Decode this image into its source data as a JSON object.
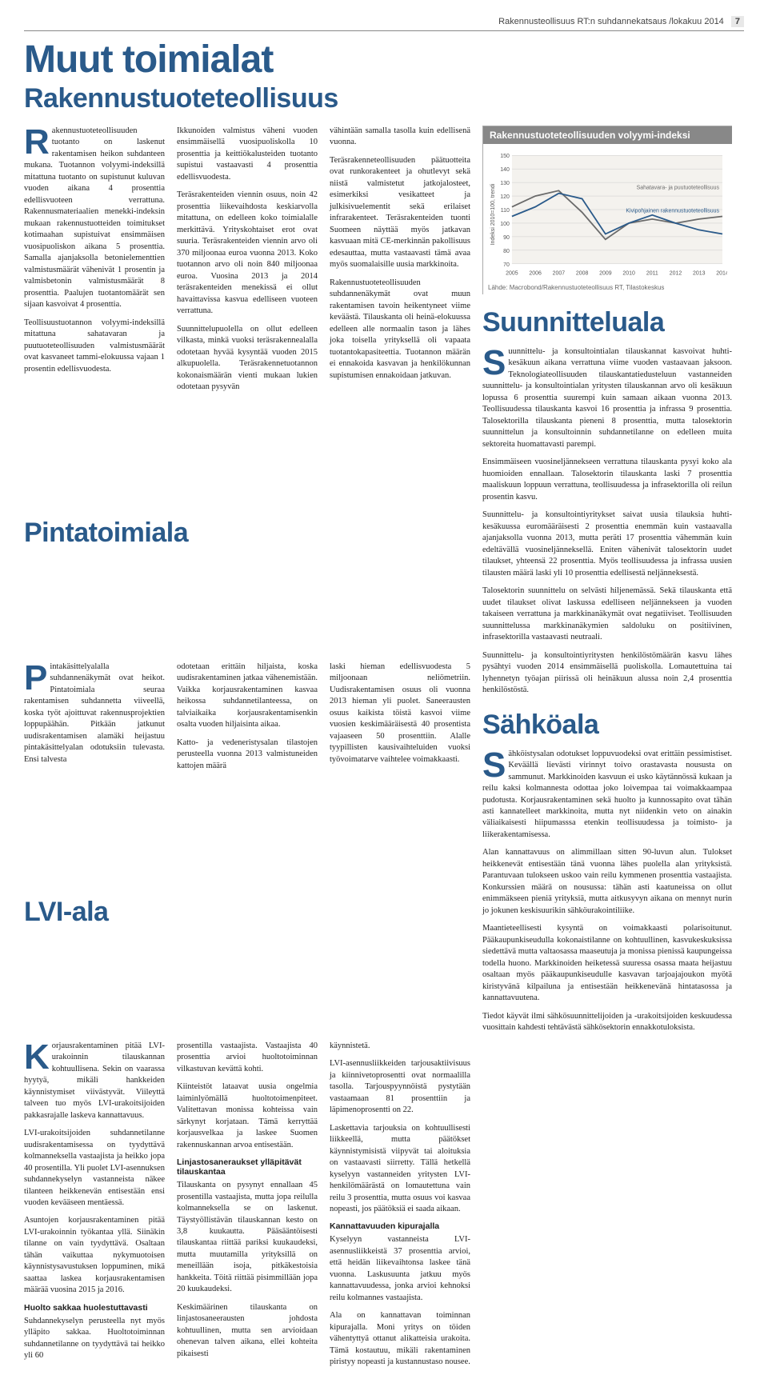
{
  "topbar": {
    "text": "Rakennusteollisuus RT:n suhdannekatsaus /lokakuu 2014",
    "page": "7"
  },
  "titles": {
    "main": "Muut toimialat",
    "sub1": "Rakennustuoteteollisuus",
    "sub2": "Pintatoimiala",
    "sub3": "LVI-ala",
    "right1": "Suunnitteluala",
    "right2": "Sähköala"
  },
  "chart": {
    "title": "Rakennustuoteteollisuuden volyymi-indeksi",
    "ylabel": "Indeksi 2010=100, trendi",
    "legend1": "Sahatavara- ja puutuoteteollisuus",
    "legend2": "Kivipohjainen rakennustuoteteollisuus",
    "ylim": [
      70,
      150
    ],
    "yticks": [
      70,
      80,
      90,
      100,
      110,
      120,
      130,
      140,
      150
    ],
    "xticks": [
      "2005",
      "2006",
      "2007",
      "2008",
      "2009",
      "2010",
      "2011",
      "2012",
      "2013",
      "2014"
    ],
    "series_colors": {
      "s1": "#6a6a6a",
      "s2": "#2a5a8a"
    },
    "grid_color": "#cccccc",
    "bg_color": "#f4f2ee",
    "s1_values": [
      112,
      120,
      124,
      108,
      88,
      100,
      103,
      100,
      103,
      105
    ],
    "s2_values": [
      105,
      112,
      122,
      118,
      92,
      100,
      106,
      100,
      95,
      92
    ],
    "source": "Lähde: Macrobond/Rakennustuoteteollisuus RT, Tilastokeskus"
  },
  "rtt": {
    "c1p1": "Rakennustuoteteollisuuden tuotanto on laskenut rakentamisen heikon suhdanteen mukana. Tuotannon volyymi-indeksillä mitattuna tuotanto on supistunut kuluvan vuoden aikana 4 prosenttia edellisvuoteen verrattuna. Rakennusmateriaalien menekki-indeksin mukaan rakennustuotteiden toimitukset kotimaahan supistuivat ensimmäisen vuosipuoliskon aikana 5 prosenttia. Samalla ajanjaksolla betonielementtien valmistusmäärät vähenivät 1 prosentin ja valmisbetonin valmistusmäärät 8 prosenttia. Paalujen tuotantomäärät sen sijaan kasvoivat 4 prosenttia.",
    "c1p2": "Teollisuustuotannon volyymi-indeksillä mitattuna sahatavaran ja puutuoteteollisuuden valmistusmäärät ovat kasvaneet tammi-elokuussa vajaan 1 prosentin edellisvuodesta.",
    "c2p1": "Ikkunoiden valmistus väheni vuoden ensimmäisellä vuosipuoliskolla 10 prosenttia ja keittiökalusteiden tuotanto supistui vastaavasti 4 prosenttia edellisvuodesta.",
    "c2p2": "Teräsrakenteiden viennin osuus, noin 42 prosenttia liikevaihdosta keskiarvolla mitattuna, on edelleen koko toimialalle merkittävä. Yrityskohtaiset erot ovat suuria. Teräsrakenteiden viennin arvo oli 370 miljoonaa euroa vuonna 2013. Koko tuotannon arvo oli noin 840 miljoonaa euroa. Vuosina 2013 ja 2014 teräsrakenteiden menekissä ei ollut havaittavissa kasvua edelliseen vuoteen verrattuna.",
    "c2p3": "Suunnittelupuolella on ollut edelleen vilkasta, minkä vuoksi teräsrakennealalla odotetaan hyvää kysyntää vuoden 2015 alkupuolella. Teräsrakennetuotannon kokonaismäärän vienti mukaan lukien odotetaan pysyvän",
    "c3p1": "vähintään samalla tasolla kuin edellisenä vuonna.",
    "c3p2": "Teräsrakenneteollisuuden päätuotteita ovat runkorakenteet ja ohutlevyt sekä niistä valmistetut jatkojalosteet, esimerkiksi vesikatteet ja julkisivuelementit sekä erilaiset infrarakenteet. Teräsrakenteiden tuonti Suomeen näyttää myös jatkavan kasvuaan mitä CE-merkinnän pakollisuus edesauttaa, mutta vastaavasti tämä avaa myös suomalaisille uusia markkinoita.",
    "c3p3": "Rakennustuoteteollisuuden suhdannenäkymät ovat muun rakentamisen tavoin heikentyneet viime keväästä. Tilauskanta oli heinä-elokuussa edelleen alle normaalin tason ja lähes joka toisella yrityksellä oli vapaata tuotantokapasiteettia. Tuotannon määrän ei ennakoida kasvavan ja henkilökunnan supistumisen ennakoidaan jatkuvan."
  },
  "pinta": {
    "c1p1": "Pintakäsittelyalalla suhdannenäkymät ovat heikot. Pintatoimiala seuraa rakentamisen suhdannetta viiveellä, koska työt ajoittuvat rakennusprojektien loppupäähän. Pitkään jatkunut uudisrakentamisen alamäki heijastuu pintakäsittelyalan odotuksiin tulevasta. Ensi talvesta",
    "c2p1": "odotetaan erittäin hiljaista, koska uudisrakentaminen jatkaa vähenemistään. Vaikka korjausrakentaminen kasvaa heikossa suhdannetilanteessa, on talviaikaika korjausrakentamisenkin osalta vuoden hiljaisinta aikaa.",
    "c2p2": "Katto- ja vedeneristysalan tilastojen perusteella vuonna 2013 valmistuneiden kattojen määrä",
    "c3p1": "laski hieman edellisvuodesta 5 miljoonaan neliömetriin. Uudisrakentamisen osuus oli vuonna 2013 hieman yli puolet. Saneerausten osuus kaikista töistä kasvoi viime vuosien keskimääräisestä 40 prosentista vajaaseen 50 prosenttiin. Alalle tyypillisten kausivaihteluiden vuoksi työvoimatarve vaihtelee voimakkaasti."
  },
  "lvi": {
    "c1p1": "Korjausrakentaminen pitää LVI-urakoinnin tilauskannan kohtuullisena. Sekin on vaarassa hyytyä, mikäli hankkeiden käynnistymiset viivästyvät. Viileyttä talveen tuo myös LVI-urakoitsijoiden pakkasrajalle laskeva kannattavuus.",
    "c1p2": "LVI-urakoitsijoiden suhdannetilanne uudisrakentamisessa on tyydyttävä kolmanneksella vastaajista ja heikko jopa 40 prosentilla. Yli puolet LVI-asennuksen suhdannekyselyn vastanneista näkee tilanteen heikkenevän entisestään ensi vuoden kevääseen mentäessä.",
    "c1p3": "Asuntojen korjausrakentaminen pitää LVI-urakoinnin työkantaa yllä. Siinäkin tilanne on vain tyydyttävä. Osaltaan tähän vaikuttaa nykymuotoisen käynnistysavustuksen loppuminen, mikä saattaa laskea korjausrakentamisen määrää vuosina 2015 ja 2016.",
    "c1h1": "Huolto sakkaa huolestuttavasti",
    "c1p4": "Suhdannekyselyn perusteella nyt myös ylläpito sakkaa. Huoltotoiminnan suhdannetilanne on tyydyttävä tai heikko yli 60",
    "c2p1": "prosentilla vastaajista. Vastaajista 40 prosenttia arvioi huoltotoiminnan vilkastuvan kevättä kohti.",
    "c2p2": "Kiinteistöt lataavat uusia ongelmia laiminlyömällä huoltotoimenpiteet. Valitettavan monissa kohteissa vain särkynyt korjataan. Tämä kerryttää korjausvelkaa ja laskee Suomen rakennuskannan arvoa entisestään.",
    "c2h1": "Linjastosaneraukset ylläpitävät tilauskantaa",
    "c2p3": "Tilauskanta on pysynyt ennallaan 45 prosentilla vastaajista, mutta jopa reilulla kolmanneksella se on laskenut. Täystyöllistävän tilauskannan kesto on 3,8 kuukautta. Pääsääntöisesti tilauskantaa riittää pariksi kuukaudeksi, mutta muutamilla yrityksillä on meneillään isoja, pitkäkestoisia hankkeita. Töitä riittää pisimmillään jopa 20 kuukaudeksi.",
    "c2p4": "Keskimäärinen tilauskanta on linjastosaneerausten johdosta kohtuullinen, mutta sen arvioidaan ohenevan talven aikana, ellei kohteita pikaisesti",
    "c3p1": "käynnistetä.",
    "c3p2": "LVI-asennusliikkeiden tarjousaktiivisuus ja kiinnivetoprosentti ovat normaalilla tasolla. Tarjouspyynnöistä pystytään vastaamaan 81 prosenttiin ja läpimenoprosentti on 22.",
    "c3p3": "Laskettavia tarjouksia on kohtuullisesti liikkeellä, mutta päätökset käynnistymisistä viipyvät tai aloituksia on vastaavasti siirretty. Tällä hetkellä kyselyyn vastanneiden yritysten LVI-henkilömäärästä on lomautettuna vain reilu 3 prosenttia, mutta osuus voi kasvaa nopeasti, jos päätöksiä ei saada aikaan.",
    "c3h1": "Kannattavuuden kipurajalla",
    "c3p4": "Kyselyyn vastanneista LVI-asennusliikkeistä 37 prosenttia arvioi, että heidän liikevaihtonsa laskee tänä vuonna. Laskusuunta jatkuu myös kannattavuudessa, jonka arvioi kehnoksi reilu kolmannes vastaajista.",
    "c3p5": "Ala on kannattavan toiminnan kipurajalla. Moni yritys on töiden vähentyttyä ottanut alikatteisia urakoita. Tämä kostautuu, mikäli rakentaminen piristyy nopeasti ja kustannustaso nousee."
  },
  "suun": {
    "p1": "Suunnittelu- ja konsultointialan tilauskannat kasvoivat huhti-kesäkuun aikana verrattuna viime vuoden vastaavaan jaksoon. Teknologiateollisuuden tilauskantatiedusteluun vastanneiden suunnittelu- ja konsultointialan yritysten tilauskannan arvo oli kesäkuun lopussa 6 prosenttia suurempi kuin samaan aikaan vuonna 2013. Teollisuudessa tilauskanta kasvoi 16 prosenttia ja infrassa 9 prosenttia. Talosektorilla tilauskanta pieneni 8 prosenttia, mutta talosektorin suunnittelun ja konsultoinnin suhdannetilanne on edelleen muita sektoreita huomattavasti parempi.",
    "p2": "Ensimmäiseen vuosineljännekseen verrattuna tilauskanta pysyi koko ala huomioiden ennallaan. Talosektorin tilauskanta laski 7 prosenttia maaliskuun loppuun verrattuna, teollisuudessa ja infrasektorilla oli reilun prosentin kasvu.",
    "p3": "Suunnittelu- ja konsultointiyritykset saivat uusia tilauksia huhti-kesäkuussa euromääräisesti 2 prosenttia enemmän kuin vastaavalla ajanjaksolla vuonna 2013, mutta peräti 17 prosenttia vähemmän kuin edeltävällä vuosineljänneksellä. Eniten vähenivät talosektorin uudet tilaukset, yhteensä 22 prosenttia. Myös teollisuudessa ja infrassa uusien tilausten määrä laski yli 10 prosenttia edellisestä neljänneksestä.",
    "p4": "Talosektorin suunnittelu on selvästi hiljenemässä. Sekä tilauskanta että uudet tilaukset olivat laskussa edelliseen neljännekseen ja vuoden takaiseen verrattuna ja markkinanäkymät ovat negatiiviset. Teollisuuden suunnittelussa markkinanäkymien saldoluku on positiivinen, infrasektorilla vastaavasti neutraali.",
    "p5": "Suunnittelu- ja konsultointiyritysten henkilöstömäärän kasvu lähes pysähtyi vuoden 2014 ensimmäisellä puoliskolla. Lomautettuina tai lyhennetyn työajan piirissä oli heinäkuun alussa noin 2,4 prosenttia henkilöstöstä."
  },
  "sahko": {
    "p1": "Sähköistysalan odotukset loppuvuodeksi ovat erittäin pessimistiset. Keväällä lievästi virinnyt toivo orastavasta noususta on sammunut. Markkinoiden kasvuun ei usko käytännössä kukaan ja reilu kaksi kolmannesta odottaa joko loivempaa tai voimakkaampaa pudotusta. Korjausrakentaminen sekä huolto ja kunnossapito ovat tähän asti kannatelleet markkinoita, mutta nyt niidenkin veto on ainakin väliaikaisesti hiipumasssa etenkin teollisuudessa ja toimisto- ja liikerakentamisessa.",
    "p2": "Alan kannattavuus on alimmillaan sitten 90-luvun alun. Tulokset heikkenevät entisestään tänä vuonna lähes puolella alan yrityksistä. Parantuvaan tulokseen uskoo vain reilu kymmenen prosenttia vastaajista. Konkurssien määrä on nousussa: tähän asti kaatuneissa on ollut enimmäkseen pieniä yrityksiä, mutta aitkusyvyn aikana on mennyt nurin jo jokunen keskisuurikin sähköurakointiliike.",
    "p3": "Maantieteellisesti kysyntä on voimakkaasti polarisoitunut. Pääkaupunkiseudulla kokonaistilanne on kohtuullinen, kasvukeskuksissa siedettävä mutta valtaosassa maaseutuja ja monissa pienissä kaupungeissa todella huono. Markkinoiden heiketessä suuressa osassa maata heijastuu osaltaan myös pääkaupunkiseudulle kasvavan tarjoajajoukon myötä kiristyvänä kilpailuna ja entisestään heikkenevänä hintatasossa ja kannattavuutena.",
    "p4": "Tiedot käyvät ilmi sähkösuunnittelijoiden ja -urakoitsijoiden keskuudessa vuosittain kahdesti tehtävästä sähkösektorin ennakkotuloksista."
  }
}
